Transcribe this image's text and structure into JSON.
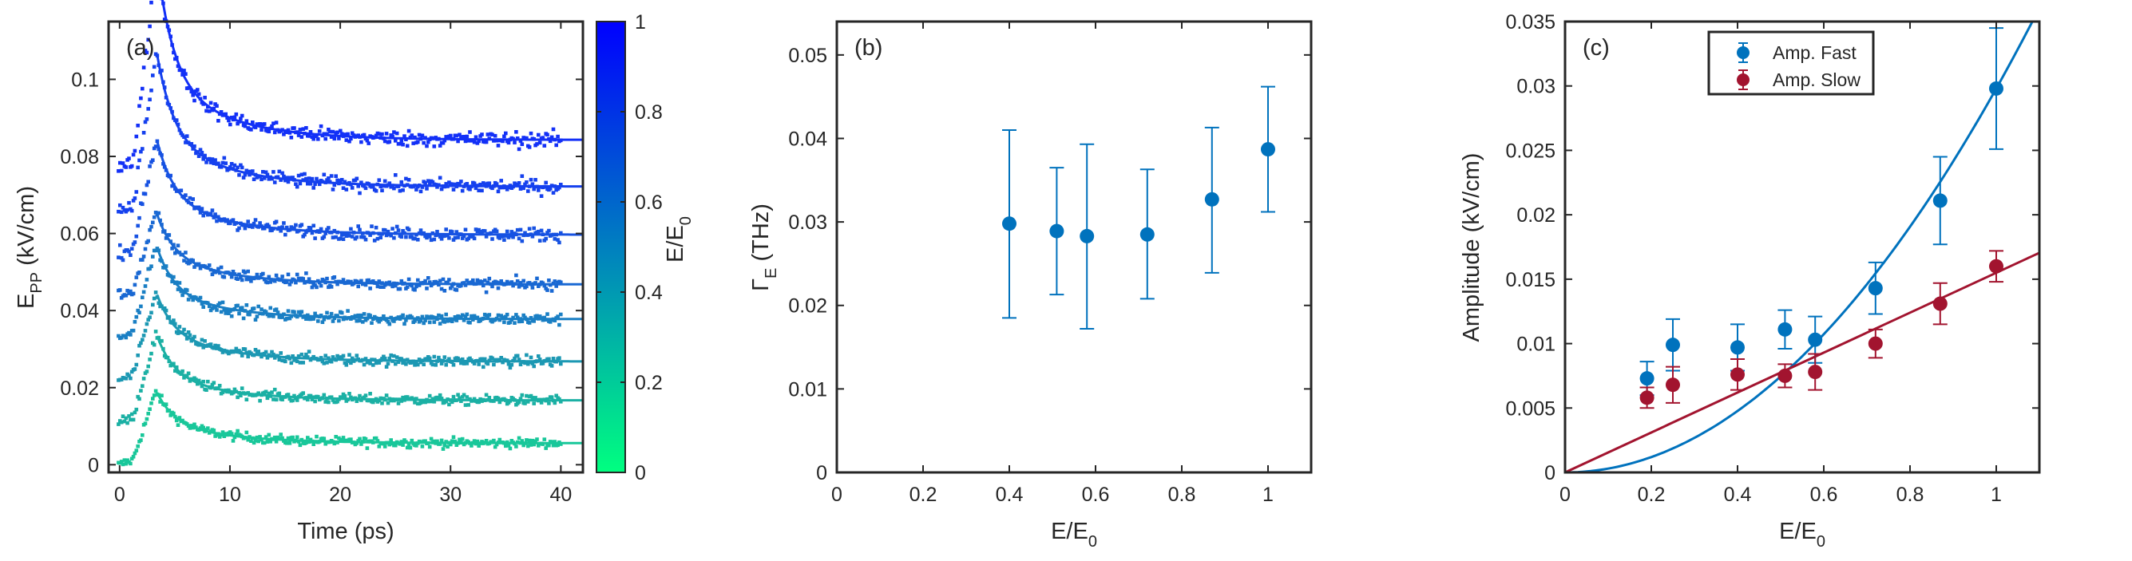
{
  "chart_data": [
    {
      "type": "scatter",
      "panel_label": "(a)",
      "xlabel": "Time (ps)",
      "ylabel_main": "E",
      "ylabel_sub": "PP",
      "ylabel_suffix": " (kV/cm)",
      "xlim": [
        -1,
        42
      ],
      "ylim": [
        -0.002,
        0.115
      ],
      "xticks": [
        0,
        10,
        20,
        30,
        40
      ],
      "yticks": [
        0,
        0.02,
        0.04,
        0.06,
        0.08,
        0.1
      ],
      "ytick_labels": [
        "0",
        "0.02",
        "0.04",
        "0.06",
        "0.08",
        "0.1"
      ],
      "series": [
        {
          "e_ratio": 0.19,
          "offset": 0.0,
          "amp_fast": 0.0073,
          "amp_slow": 0.0058,
          "plateau": 0.0056,
          "color": "#19c79a"
        },
        {
          "e_ratio": 0.25,
          "offset": 0.011,
          "amp_fast": 0.0099,
          "amp_slow": 0.0068,
          "plateau": 0.0167,
          "color": "#1bb0a4"
        },
        {
          "e_ratio": 0.4,
          "offset": 0.022,
          "amp_fast": 0.0097,
          "amp_slow": 0.0076,
          "plateau": 0.0268,
          "color": "#1c98b3"
        },
        {
          "e_ratio": 0.51,
          "offset": 0.033,
          "amp_fast": 0.0111,
          "amp_slow": 0.0075,
          "plateau": 0.0378,
          "color": "#1a7fc4"
        },
        {
          "e_ratio": 0.58,
          "offset": 0.044,
          "amp_fast": 0.0103,
          "amp_slow": 0.0078,
          "plateau": 0.0468,
          "color": "#1968d3"
        },
        {
          "e_ratio": 0.72,
          "offset": 0.055,
          "amp_fast": 0.0143,
          "amp_slow": 0.01,
          "plateau": 0.0597,
          "color": "#1752e2"
        },
        {
          "e_ratio": 0.87,
          "offset": 0.066,
          "amp_fast": 0.0211,
          "amp_slow": 0.0131,
          "plateau": 0.0722,
          "color": "#1540ee"
        },
        {
          "e_ratio": 1.0,
          "offset": 0.077,
          "amp_fast": 0.0298,
          "amp_slow": 0.016,
          "plateau": 0.0843,
          "color": "#1330f7"
        }
      ],
      "colorbar": {
        "label_main": "E/E",
        "label_sub": "0",
        "range": [
          0,
          1
        ],
        "ticks": [
          0,
          0.2,
          0.4,
          0.6,
          0.8,
          1
        ],
        "tick_labels": [
          "0",
          "0.2",
          "0.4",
          "0.6",
          "0.8",
          "1"
        ],
        "color_low": "#00ff80",
        "color_high": "#0000ff"
      }
    },
    {
      "type": "scatter",
      "panel_label": "(b)",
      "xlabel_main": "E/E",
      "xlabel_sub": "0",
      "ylabel_main": "Γ",
      "ylabel_sub": "E",
      "ylabel_suffix": " (THz)",
      "xlim": [
        0,
        1.1
      ],
      "ylim": [
        0,
        0.054
      ],
      "xticks": [
        0,
        0.2,
        0.4,
        0.6,
        0.8,
        1
      ],
      "xtick_labels": [
        "0",
        "0.2",
        "0.4",
        "0.6",
        "0.8",
        "1"
      ],
      "yticks": [
        0,
        0.01,
        0.02,
        0.03,
        0.04,
        0.05
      ],
      "ytick_labels": [
        "0",
        "0.01",
        "0.02",
        "0.03",
        "0.04",
        "0.05"
      ],
      "color": "#0072bd",
      "x": [
        0.4,
        0.51,
        0.58,
        0.72,
        0.87,
        1.0
      ],
      "y": [
        0.0298,
        0.0289,
        0.0283,
        0.0285,
        0.0327,
        0.0387
      ],
      "err_low": [
        0.0113,
        0.0076,
        0.0111,
        0.0077,
        0.0088,
        0.0075
      ],
      "err_high": [
        0.0112,
        0.0076,
        0.011,
        0.0078,
        0.0086,
        0.0075
      ]
    },
    {
      "type": "scatter",
      "panel_label": "(c)",
      "xlabel_main": "E/E",
      "xlabel_sub": "0",
      "ylabel": "Amplitude (kV/cm)",
      "xlim": [
        0,
        1.1
      ],
      "ylim": [
        0,
        0.035
      ],
      "xticks": [
        0,
        0.2,
        0.4,
        0.6,
        0.8,
        1
      ],
      "xtick_labels": [
        "0",
        "0.2",
        "0.4",
        "0.6",
        "0.8",
        "1"
      ],
      "yticks": [
        0,
        0.005,
        0.01,
        0.015,
        0.02,
        0.025,
        0.03,
        0.035
      ],
      "ytick_labels": [
        "0",
        "0.005",
        "0.01",
        "0.015",
        "0.02",
        "0.025",
        "0.03",
        "0.035"
      ],
      "legend_position": "top-center",
      "series": [
        {
          "name": "Amp. Fast",
          "color": "#0072bd",
          "x": [
            0.19,
            0.25,
            0.4,
            0.51,
            0.58,
            0.72,
            0.87,
            1.0
          ],
          "y": [
            0.0073,
            0.0099,
            0.0097,
            0.0111,
            0.0103,
            0.0143,
            0.0211,
            0.0298
          ],
          "err": [
            0.0013,
            0.002,
            0.0018,
            0.0015,
            0.0018,
            0.002,
            0.0034,
            0.0047
          ],
          "fit": "quadratic",
          "fit_coef": 0.0298
        },
        {
          "name": "Amp. Slow",
          "color": "#a2142f",
          "x": [
            0.19,
            0.25,
            0.4,
            0.51,
            0.58,
            0.72,
            0.87,
            1.0
          ],
          "y": [
            0.0058,
            0.0068,
            0.0076,
            0.0075,
            0.0078,
            0.01,
            0.0131,
            0.016
          ],
          "err": [
            0.0008,
            0.0014,
            0.0012,
            0.0009,
            0.0014,
            0.0011,
            0.0016,
            0.0012
          ],
          "fit": "linear",
          "fit_coef": 0.0155
        }
      ]
    }
  ]
}
